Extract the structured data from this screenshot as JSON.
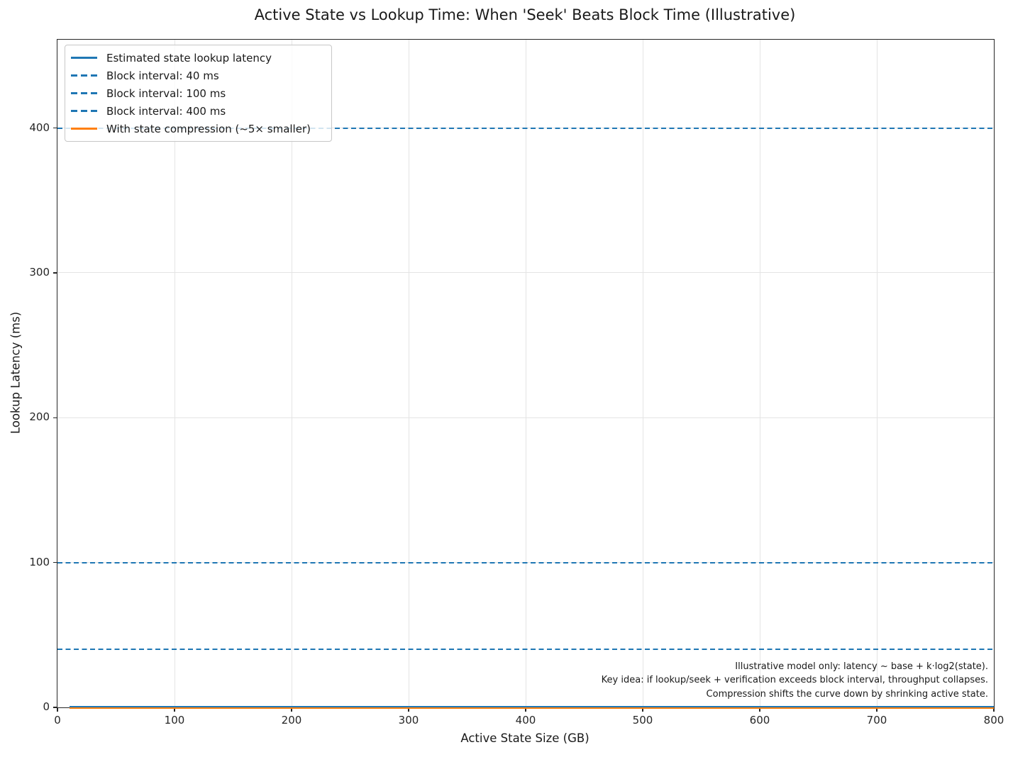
{
  "title": "Active State vs Lookup Time: When 'Seek' Beats Block Time (Illustrative)",
  "axes": {
    "xlabel": "Active State Size (GB)",
    "ylabel": "Lookup Latency (ms)"
  },
  "legend": {
    "position": "upper left",
    "items": [
      {
        "label": "Estimated state lookup latency",
        "color": "#1f77b4",
        "style": "solid"
      },
      {
        "label": "Block interval: 40 ms",
        "color": "#1f77b4",
        "style": "dashed"
      },
      {
        "label": "Block interval: 100 ms",
        "color": "#1f77b4",
        "style": "dashed"
      },
      {
        "label": "Block interval: 400 ms",
        "color": "#1f77b4",
        "style": "dashed"
      },
      {
        "label": "With state compression (~5× smaller)",
        "color": "#ff7f0e",
        "style": "solid"
      }
    ]
  },
  "annotation": {
    "lines": [
      "Illustrative model only: latency ~ base + k·log2(state).",
      "Key idea: if lookup/seek + verification exceeds block interval, throughput collapses.",
      "Compression shifts the curve down by shrinking active state."
    ]
  },
  "colors": {
    "accent_blue": "#1f77b4",
    "accent_orange": "#ff7f0e",
    "grid": "#e4e4e4",
    "spine": "#262626",
    "legend_border": "#c7c7c7"
  },
  "chart_data": {
    "type": "line",
    "title": "Active State vs Lookup Time: When 'Seek' Beats Block Time (Illustrative)",
    "xlabel": "Active State Size (GB)",
    "ylabel": "Lookup Latency (ms)",
    "xlim": [
      0,
      800
    ],
    "ylim": [
      0,
      461
    ],
    "x_ticks": [
      0,
      100,
      200,
      300,
      400,
      500,
      600,
      700,
      800
    ],
    "y_ticks": [
      0,
      100,
      200,
      300,
      400
    ],
    "grid": true,
    "legend_position": "upper left",
    "series": [
      {
        "name": "Estimated state lookup latency",
        "color": "#1f77b4",
        "style": "solid",
        "x_range": [
          10,
          800
        ],
        "y_approx": [
          0.3,
          0.5
        ]
      },
      {
        "name": "With state compression (~5× smaller)",
        "color": "#ff7f0e",
        "style": "solid",
        "x_range": [
          10,
          800
        ],
        "y_approx": [
          0.1,
          0.2
        ]
      }
    ],
    "hlines": [
      {
        "label": "Block interval: 40 ms",
        "y": 40,
        "color": "#1f77b4",
        "style": "dashed"
      },
      {
        "label": "Block interval: 100 ms",
        "y": 100,
        "color": "#1f77b4",
        "style": "dashed"
      },
      {
        "label": "Block interval: 400 ms",
        "y": 400,
        "color": "#1f77b4",
        "style": "dashed"
      }
    ],
    "annotations": [
      "Illustrative model only: latency ~ base + k·log2(state).",
      "Key idea: if lookup/seek + verification exceeds block interval, throughput collapses.",
      "Compression shifts the curve down by shrinking active state."
    ]
  }
}
